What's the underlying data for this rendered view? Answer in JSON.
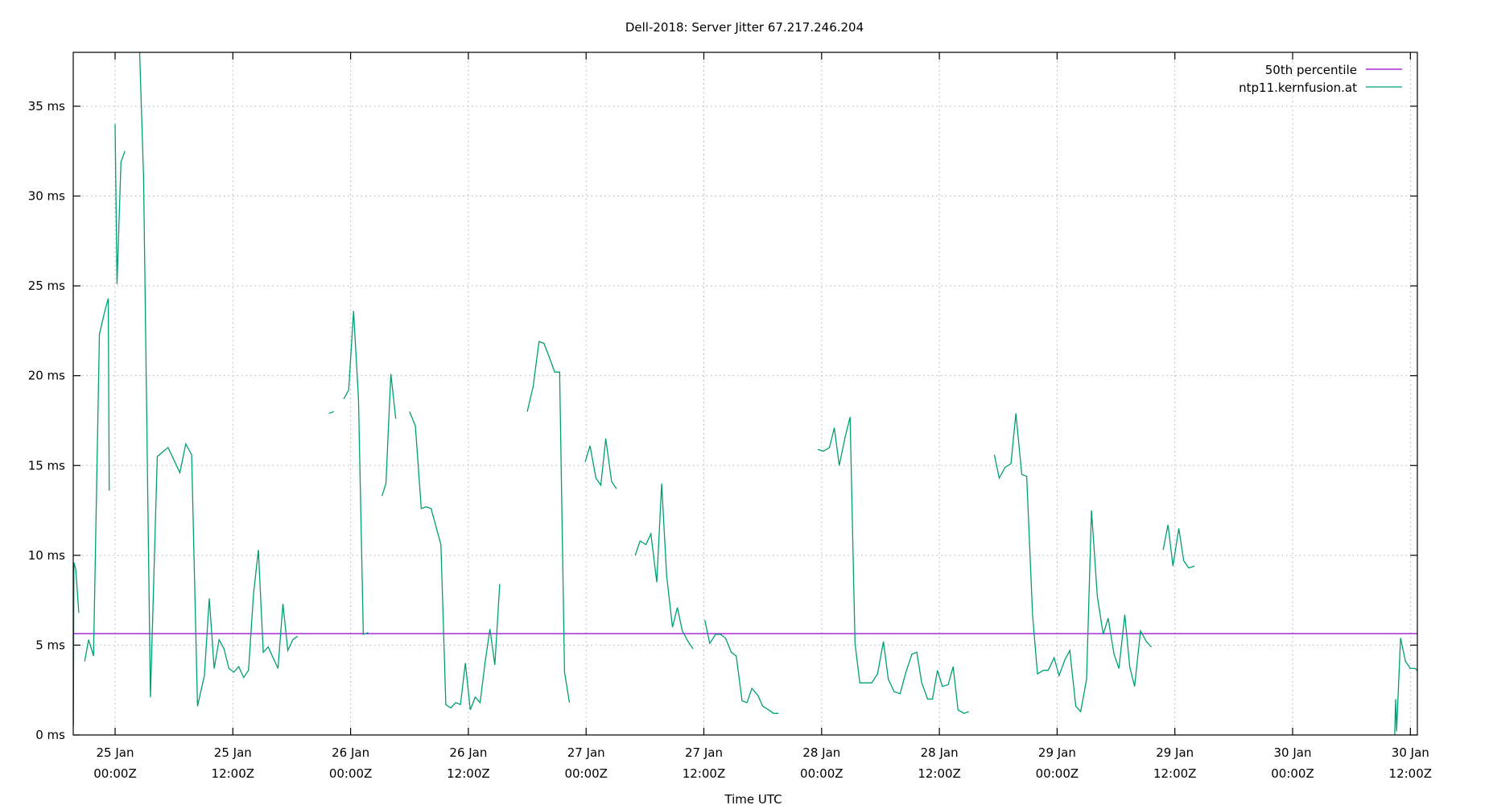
{
  "chart_data": {
    "type": "line",
    "title": "Dell-2018: Server Jitter 67.217.246.204",
    "xlabel": "Time UTC",
    "ylabel": "",
    "ylim": [
      0,
      38
    ],
    "xlim_hours_from_25jan_0000": [
      -4.3,
      132.7
    ],
    "grid": true,
    "legend_position": "top-right",
    "y_ticks": [
      {
        "value": 0,
        "label": "0 ms"
      },
      {
        "value": 5,
        "label": "5 ms"
      },
      {
        "value": 10,
        "label": "10 ms"
      },
      {
        "value": 15,
        "label": "15 ms"
      },
      {
        "value": 20,
        "label": "20 ms"
      },
      {
        "value": 25,
        "label": "25 ms"
      },
      {
        "value": 30,
        "label": "30 ms"
      },
      {
        "value": 35,
        "label": "35 ms"
      }
    ],
    "x_ticks": [
      {
        "hours": 0,
        "line1": "25 Jan",
        "line2": "00:00Z"
      },
      {
        "hours": 12,
        "line1": "25 Jan",
        "line2": "12:00Z"
      },
      {
        "hours": 24,
        "line1": "26 Jan",
        "line2": "00:00Z"
      },
      {
        "hours": 36,
        "line1": "26 Jan",
        "line2": "12:00Z"
      },
      {
        "hours": 48,
        "line1": "27 Jan",
        "line2": "00:00Z"
      },
      {
        "hours": 60,
        "line1": "27 Jan",
        "line2": "12:00Z"
      },
      {
        "hours": 72,
        "line1": "28 Jan",
        "line2": "00:00Z"
      },
      {
        "hours": 84,
        "line1": "28 Jan",
        "line2": "12:00Z"
      },
      {
        "hours": 96,
        "line1": "29 Jan",
        "line2": "00:00Z"
      },
      {
        "hours": 108,
        "line1": "29 Jan",
        "line2": "12:00Z"
      },
      {
        "hours": 120,
        "line1": "30 Jan",
        "line2": "00:00Z"
      },
      {
        "hours": 132,
        "line1": "30 Jan",
        "line2": "12:00Z"
      }
    ],
    "series": [
      {
        "name": "50th percentile",
        "color": "#9400d3",
        "constant": 5.64
      },
      {
        "name": "ntp11.kernfusion.at",
        "color": "#009e73",
        "segments": [
          [
            [
              -4.3,
              14.6
            ],
            [
              -4.25,
              0.5
            ],
            [
              -4.2,
              9.6
            ],
            [
              -4.0,
              9.2
            ],
            [
              -3.7,
              6.8
            ]
          ],
          [
            [
              -3.1,
              4.1
            ],
            [
              -2.7,
              5.3
            ],
            [
              -2.2,
              4.4
            ],
            [
              -1.6,
              22.3
            ],
            [
              -1.0,
              23.7
            ],
            [
              -0.7,
              24.3
            ],
            [
              -0.6,
              13.6
            ]
          ],
          [
            [
              0.0,
              34.0
            ],
            [
              0.2,
              25.1
            ],
            [
              0.6,
              31.9
            ],
            [
              1.0,
              32.5
            ]
          ],
          [
            [
              2.5,
              38.0
            ],
            [
              2.9,
              31.0
            ],
            [
              3.6,
              2.1
            ],
            [
              4.3,
              15.5
            ],
            [
              5.4,
              16.0
            ],
            [
              6.6,
              14.6
            ],
            [
              7.2,
              16.2
            ],
            [
              7.8,
              15.6
            ],
            [
              8.4,
              1.6
            ],
            [
              9.1,
              3.3
            ],
            [
              9.6,
              7.6
            ],
            [
              10.1,
              3.7
            ],
            [
              10.6,
              5.3
            ],
            [
              11.1,
              4.8
            ],
            [
              11.6,
              3.7
            ],
            [
              12.1,
              3.5
            ],
            [
              12.6,
              3.8
            ],
            [
              13.1,
              3.2
            ],
            [
              13.6,
              3.6
            ],
            [
              14.1,
              7.8
            ],
            [
              14.6,
              10.3
            ],
            [
              15.1,
              4.6
            ],
            [
              15.6,
              4.9
            ],
            [
              16.6,
              3.7
            ],
            [
              17.1,
              7.3
            ],
            [
              17.6,
              4.7
            ],
            [
              18.1,
              5.3
            ],
            [
              18.6,
              5.5
            ]
          ],
          [
            [
              21.8,
              17.9
            ],
            [
              22.3,
              18.0
            ]
          ],
          [
            [
              23.3,
              18.7
            ],
            [
              23.8,
              19.2
            ],
            [
              24.3,
              23.6
            ],
            [
              24.8,
              18.7
            ],
            [
              25.3,
              5.6
            ],
            [
              25.8,
              5.7
            ]
          ],
          [
            [
              27.2,
              13.3
            ],
            [
              27.6,
              14.0
            ],
            [
              28.1,
              20.1
            ],
            [
              28.6,
              17.6
            ]
          ],
          [
            [
              30.0,
              18.0
            ],
            [
              30.6,
              17.2
            ],
            [
              31.2,
              12.6
            ],
            [
              31.7,
              12.7
            ],
            [
              32.2,
              12.6
            ],
            [
              32.7,
              11.6
            ],
            [
              33.2,
              10.6
            ],
            [
              33.7,
              1.7
            ],
            [
              34.2,
              1.5
            ],
            [
              34.7,
              1.8
            ],
            [
              35.2,
              1.7
            ],
            [
              35.7,
              4.0
            ],
            [
              36.2,
              1.4
            ],
            [
              36.7,
              2.1
            ],
            [
              37.2,
              1.8
            ],
            [
              37.7,
              4.0
            ],
            [
              38.2,
              5.9
            ],
            [
              38.7,
              3.9
            ],
            [
              39.2,
              8.4
            ]
          ],
          [
            [
              42.0,
              18.0
            ],
            [
              42.6,
              19.4
            ],
            [
              43.2,
              21.9
            ],
            [
              43.7,
              21.8
            ],
            [
              44.2,
              21.1
            ],
            [
              44.8,
              20.2
            ],
            [
              45.3,
              20.2
            ],
            [
              45.8,
              3.5
            ],
            [
              46.3,
              1.8
            ]
          ],
          [
            [
              47.9,
              15.2
            ],
            [
              48.4,
              16.1
            ],
            [
              49.0,
              14.3
            ],
            [
              49.5,
              13.9
            ],
            [
              50.0,
              16.5
            ],
            [
              50.6,
              14.1
            ],
            [
              51.1,
              13.7
            ]
          ],
          [
            [
              53.0,
              10.0
            ],
            [
              53.5,
              10.8
            ],
            [
              54.1,
              10.6
            ],
            [
              54.6,
              11.2
            ],
            [
              55.2,
              8.5
            ],
            [
              55.7,
              14.0
            ],
            [
              56.2,
              8.9
            ],
            [
              56.8,
              6.0
            ],
            [
              57.3,
              7.1
            ],
            [
              57.8,
              5.8
            ],
            [
              58.4,
              5.2
            ],
            [
              58.9,
              4.8
            ]
          ],
          [
            [
              60.1,
              6.4
            ],
            [
              60.6,
              5.1
            ],
            [
              61.2,
              5.6
            ],
            [
              61.7,
              5.6
            ],
            [
              62.2,
              5.4
            ],
            [
              62.8,
              4.6
            ],
            [
              63.3,
              4.4
            ],
            [
              63.9,
              1.9
            ],
            [
              64.4,
              1.8
            ],
            [
              64.9,
              2.6
            ],
            [
              65.5,
              2.2
            ],
            [
              66.0,
              1.6
            ],
            [
              66.6,
              1.4
            ],
            [
              67.1,
              1.2
            ],
            [
              67.6,
              1.2
            ]
          ],
          [
            [
              71.6,
              15.9
            ],
            [
              72.2,
              15.8
            ],
            [
              72.8,
              16.0
            ],
            [
              73.3,
              17.1
            ],
            [
              73.8,
              15.0
            ],
            [
              74.4,
              16.6
            ],
            [
              74.9,
              17.7
            ],
            [
              75.4,
              5.1
            ],
            [
              75.9,
              2.9
            ],
            [
              76.5,
              2.9
            ],
            [
              77.1,
              2.9
            ],
            [
              77.7,
              3.4
            ],
            [
              78.3,
              5.2
            ],
            [
              78.8,
              3.1
            ],
            [
              79.4,
              2.4
            ],
            [
              80.0,
              2.3
            ],
            [
              80.6,
              3.5
            ],
            [
              81.2,
              4.5
            ],
            [
              81.7,
              4.6
            ],
            [
              82.2,
              2.9
            ],
            [
              82.8,
              2.0
            ],
            [
              83.3,
              2.0
            ],
            [
              83.8,
              3.6
            ],
            [
              84.3,
              2.7
            ],
            [
              84.9,
              2.8
            ],
            [
              85.4,
              3.8
            ],
            [
              85.9,
              1.4
            ],
            [
              86.5,
              1.2
            ],
            [
              87.0,
              1.3
            ]
          ],
          [
            [
              89.6,
              15.6
            ],
            [
              90.1,
              14.3
            ],
            [
              90.7,
              14.9
            ],
            [
              91.3,
              15.1
            ],
            [
              91.8,
              17.9
            ],
            [
              92.4,
              14.5
            ],
            [
              92.9,
              14.4
            ],
            [
              93.5,
              6.7
            ],
            [
              94.0,
              3.4
            ],
            [
              94.6,
              3.6
            ],
            [
              95.1,
              3.6
            ],
            [
              95.7,
              4.3
            ],
            [
              96.2,
              3.3
            ],
            [
              96.8,
              4.2
            ],
            [
              97.3,
              4.7
            ],
            [
              97.9,
              1.6
            ],
            [
              98.4,
              1.3
            ],
            [
              99.0,
              3.1
            ],
            [
              99.5,
              12.5
            ],
            [
              100.1,
              7.7
            ],
            [
              100.7,
              5.6
            ],
            [
              101.2,
              6.5
            ],
            [
              101.8,
              4.5
            ],
            [
              102.3,
              3.7
            ],
            [
              102.9,
              6.7
            ],
            [
              103.4,
              3.8
            ],
            [
              103.9,
              2.7
            ],
            [
              104.5,
              5.8
            ],
            [
              105.1,
              5.2
            ],
            [
              105.6,
              4.9
            ]
          ],
          [
            [
              106.8,
              10.3
            ],
            [
              107.3,
              11.7
            ],
            [
              107.8,
              9.4
            ],
            [
              108.4,
              11.5
            ],
            [
              108.9,
              9.7
            ],
            [
              109.4,
              9.3
            ],
            [
              110.0,
              9.4
            ]
          ],
          [
            [
              130.4,
              0.0
            ],
            [
              130.5,
              2.0
            ],
            [
              130.6,
              0.2
            ],
            [
              131.0,
              5.4
            ],
            [
              131.5,
              4.1
            ],
            [
              132.0,
              3.7
            ],
            [
              132.5,
              3.7
            ],
            [
              133.0,
              3.4
            ],
            [
              133.5,
              3.3
            ]
          ]
        ]
      }
    ]
  },
  "legend": {
    "items": [
      {
        "label": "50th percentile",
        "color": "#9400d3"
      },
      {
        "label": "ntp11.kernfusion.at",
        "color": "#009e73"
      }
    ]
  }
}
